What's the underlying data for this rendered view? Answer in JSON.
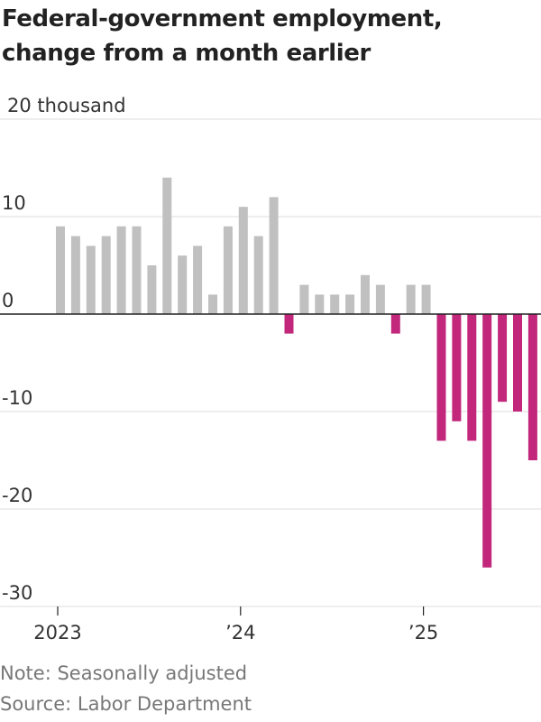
{
  "title": "Federal-government employment, change from a month earlier",
  "note": "Note: Seasonally adjusted",
  "source": "Source: Labor Department",
  "colors": {
    "positive": "#c0c0c0",
    "negative": "#c2277c",
    "grid": "#dddddd",
    "axis": "#222222",
    "tick_text": "#333333"
  },
  "chart_data": {
    "type": "bar",
    "ylabel_top": "20 thousand",
    "ytick_labels": [
      "20 thousand",
      "10",
      "0",
      "-10",
      "-20",
      "-30"
    ],
    "ytick_values": [
      20,
      10,
      0,
      -10,
      -20,
      -30
    ],
    "ylim": [
      -30,
      20
    ],
    "x_tick_labels": [
      {
        "label": "2023",
        "month_index": 0
      },
      {
        "label": "’24",
        "month_index": 12
      },
      {
        "label": "’25",
        "month_index": 24
      }
    ],
    "x_start": "2023-01",
    "grid": true,
    "values": [
      9,
      8,
      7,
      8,
      9,
      9,
      5,
      14,
      6,
      7,
      2,
      9,
      11,
      8,
      12,
      -2,
      3,
      2,
      2,
      2,
      4,
      3,
      -2,
      3,
      3,
      -13,
      -11,
      -13,
      -26,
      -9,
      -10,
      -15
    ]
  }
}
